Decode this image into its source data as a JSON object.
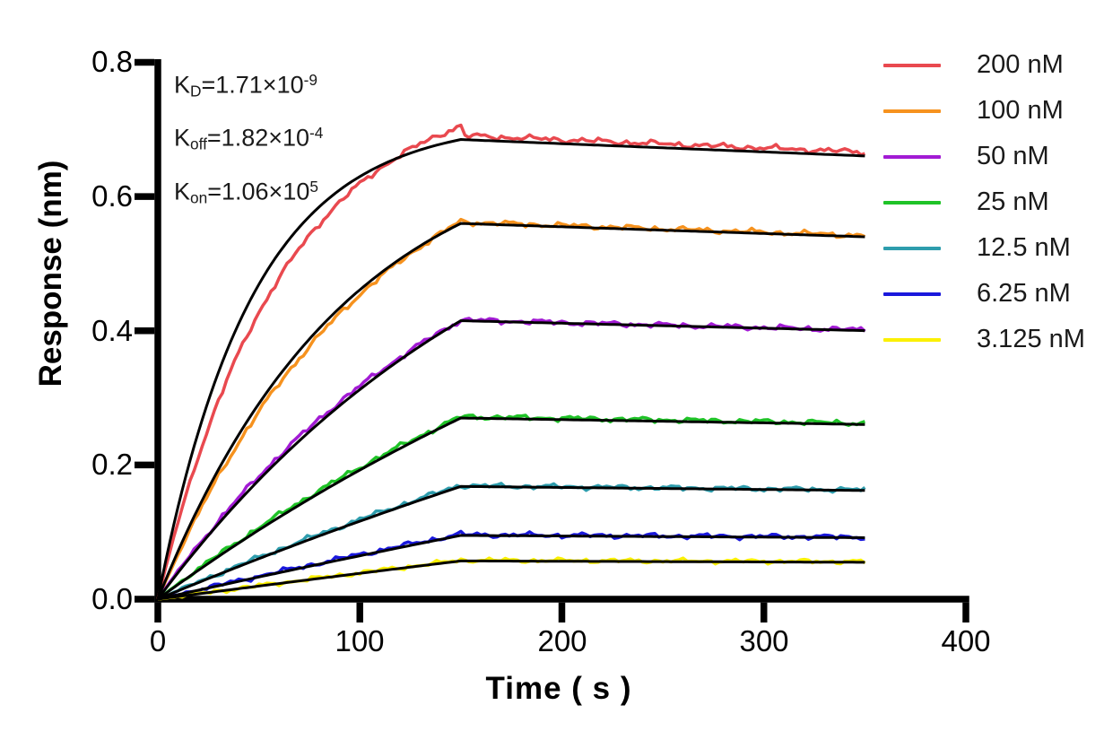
{
  "annotations": {
    "kd": {
      "k": "K",
      "sub": "D",
      "mid": "=1.71×10",
      "sup": "-9"
    },
    "koff": {
      "k": "K",
      "sub": "off",
      "mid": "=1.82×10",
      "sup": "-4"
    },
    "kon": {
      "k": "K",
      "sub": "on",
      "mid": "=1.06×10",
      "sup": "5"
    }
  },
  "chart_data": {
    "type": "line",
    "title": "",
    "xlabel": "Time ( s )",
    "ylabel": "Response (nm)",
    "xlim": [
      0,
      400
    ],
    "ylim": [
      0,
      0.8
    ],
    "x_ticks": [
      0,
      100,
      200,
      300,
      400
    ],
    "x_tick_labels": [
      "0",
      "100",
      "200",
      "300",
      "400"
    ],
    "y_ticks": [
      0,
      0.2,
      0.4,
      0.6,
      0.8
    ],
    "y_tick_labels": [
      "0.0",
      "0.2",
      "0.4",
      "0.6",
      "0.8"
    ],
    "grid": false,
    "legend_position": "right",
    "axis_color": "#000000",
    "fit_color": "#000000",
    "association_end_s": 150,
    "curve_end_s": 350,
    "koff_per_s": 0.000182,
    "series": [
      {
        "label": "200 nM",
        "color": "#E9494F",
        "response_at_150s": 0.685,
        "response_at_350s": 0.66,
        "kobs": 0.0214,
        "kobs_data": 0.016,
        "data_peak": 0.705,
        "diss_offset": 0.006,
        "noise": 0.0042
      },
      {
        "label": "100 nM",
        "color": "#F6921E",
        "response_at_150s": 0.56,
        "response_at_350s": 0.54,
        "kobs": 0.0108,
        "kobs_data": 0.0094,
        "data_peak": 0.563,
        "diss_offset": 0.002,
        "noise": 0.004
      },
      {
        "label": "50 nM",
        "color": "#A21BD4",
        "response_at_150s": 0.415,
        "response_at_350s": 0.4,
        "kobs": 0.00548,
        "kobs_data": 0.0062,
        "data_peak": 0.416,
        "diss_offset": 0.001,
        "noise": 0.004
      },
      {
        "label": "25 nM",
        "color": "#1FC327",
        "response_at_150s": 0.27,
        "response_at_350s": 0.26,
        "kobs": 0.00283,
        "kobs_data": 0.0034,
        "data_peak": 0.272,
        "diss_offset": 0.002,
        "noise": 0.0038
      },
      {
        "label": "12.5 nM",
        "color": "#2E9DAD",
        "response_at_150s": 0.168,
        "response_at_350s": 0.162,
        "kobs": 0.00151,
        "kobs_data": 0.0019,
        "data_peak": 0.17,
        "diss_offset": 0.001,
        "noise": 0.0036
      },
      {
        "label": "6.25 nM",
        "color": "#1A18DC",
        "response_at_150s": 0.095,
        "response_at_350s": 0.092,
        "kobs": 0.00084,
        "kobs_data": 0.00115,
        "data_peak": 0.097,
        "diss_offset": 0.001,
        "noise": 0.0036
      },
      {
        "label": "3.125 nM",
        "color": "#FBF000",
        "response_at_150s": 0.057,
        "response_at_350s": 0.055,
        "kobs": 0.00051,
        "kobs_data": 0.00068,
        "data_peak": 0.058,
        "diss_offset": 0.001,
        "noise": 0.0032
      }
    ]
  }
}
